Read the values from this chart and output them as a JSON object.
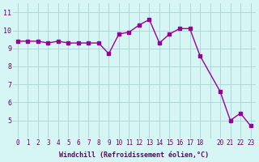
{
  "x": [
    0,
    1,
    2,
    3,
    4,
    5,
    6,
    7,
    8,
    9,
    10,
    11,
    12,
    13,
    14,
    15,
    16,
    17,
    18,
    20,
    21,
    22,
    23
  ],
  "y": [
    9.4,
    9.4,
    9.4,
    9.3,
    9.4,
    9.3,
    9.3,
    9.3,
    9.3,
    8.7,
    9.8,
    9.9,
    10.3,
    10.6,
    9.3,
    9.8,
    10.1,
    10.1,
    8.6,
    6.6,
    5.0,
    5.4,
    4.7
  ],
  "line_color": "#990099",
  "marker": "s",
  "marker_size": 3,
  "bg_color": "#d6f5f5",
  "grid_color": "#b0d8d8",
  "xlabel": "Windchill (Refroidissement éolien,°C)",
  "xlabel_color": "#660066",
  "tick_color": "#660066",
  "xlim": [
    -0.5,
    23.5
  ],
  "ylim": [
    4.0,
    11.5
  ],
  "yticks": [
    5,
    6,
    7,
    8,
    9,
    10,
    11
  ],
  "xticks": [
    0,
    1,
    2,
    3,
    4,
    5,
    6,
    7,
    8,
    9,
    10,
    11,
    12,
    13,
    14,
    15,
    16,
    17,
    18,
    19,
    20,
    21,
    22,
    23
  ],
  "xtick_labels": [
    "0",
    "1",
    "2",
    "3",
    "4",
    "5",
    "6",
    "7",
    "8",
    "9",
    "10",
    "11",
    "12",
    "13",
    "14",
    "15",
    "16",
    "17",
    "18",
    "",
    "20",
    "21",
    "22",
    "23"
  ]
}
